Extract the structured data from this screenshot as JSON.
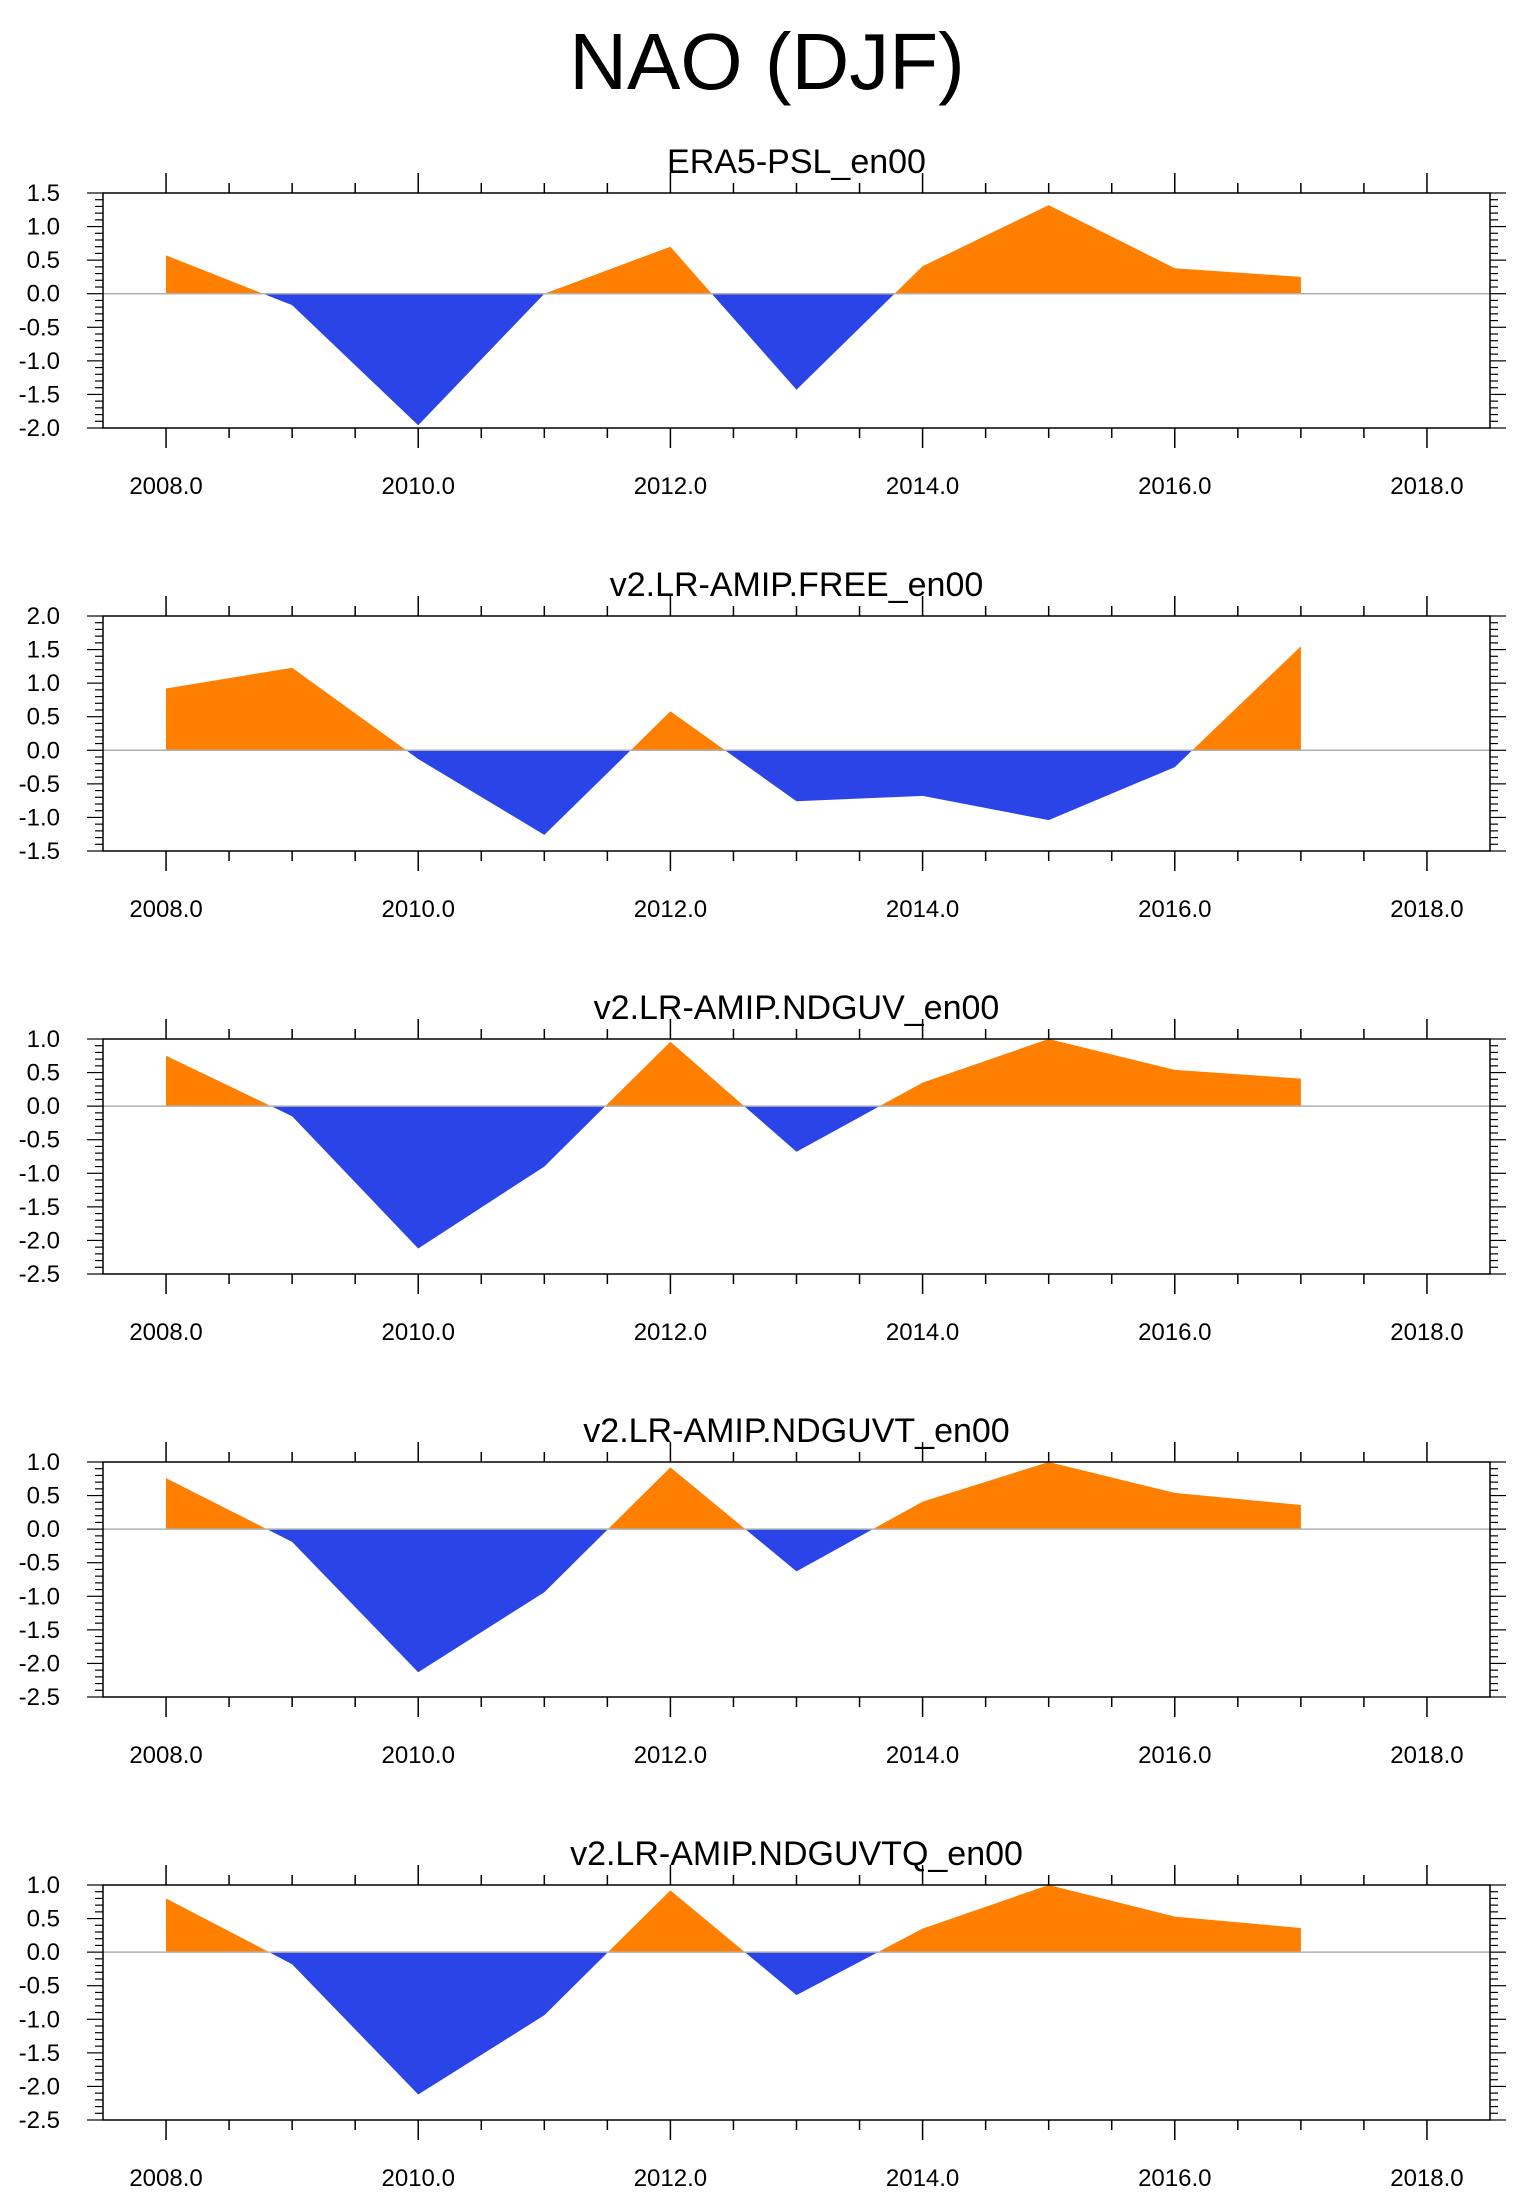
{
  "title": "NAO (DJF)",
  "colors": {
    "positive": "#ff8000",
    "negative": "#2a44e8",
    "axis": "#000000",
    "zero_line": "#b0b0b0"
  },
  "chart_data": [
    {
      "type": "area",
      "title": "ERA5-PSL_en00",
      "x": [
        2008,
        2009,
        2010,
        2011,
        2012,
        2013,
        2014,
        2015,
        2016,
        2017
      ],
      "values": [
        0.57,
        -0.17,
        -1.96,
        0.0,
        0.7,
        -1.43,
        0.41,
        1.32,
        0.38,
        0.25
      ],
      "xlim": [
        2007.5,
        2018.5
      ],
      "xticks": [
        "2008.0",
        "2010.0",
        "2012.0",
        "2014.0",
        "2016.0",
        "2018.0"
      ],
      "ylim": [
        -2.0,
        1.5
      ],
      "yticks": [
        "1.5",
        "1.0",
        "0.5",
        "0.0",
        "-0.5",
        "-1.0",
        "-1.5",
        "-2.0"
      ]
    },
    {
      "type": "area",
      "title": "v2.LR-AMIP.FREE_en00",
      "x": [
        2008,
        2009,
        2010,
        2011,
        2012,
        2013,
        2014,
        2015,
        2016,
        2017
      ],
      "values": [
        0.92,
        1.23,
        -0.13,
        -1.26,
        0.58,
        -0.76,
        -0.68,
        -1.04,
        -0.25,
        1.55
      ],
      "xlim": [
        2007.5,
        2018.5
      ],
      "xticks": [
        "2008.0",
        "2010.0",
        "2012.0",
        "2014.0",
        "2016.0",
        "2018.0"
      ],
      "ylim": [
        -1.5,
        2.0
      ],
      "yticks": [
        "2.0",
        "1.5",
        "1.0",
        "0.5",
        "0.0",
        "-0.5",
        "-1.0",
        "-1.5"
      ]
    },
    {
      "type": "area",
      "title": "v2.LR-AMIP.NDGUV_en00",
      "x": [
        2008,
        2009,
        2010,
        2011,
        2012,
        2013,
        2014,
        2015,
        2016,
        2017
      ],
      "values": [
        0.75,
        -0.15,
        -2.12,
        -0.9,
        0.96,
        -0.68,
        0.35,
        1.0,
        0.54,
        0.41
      ],
      "xlim": [
        2007.5,
        2018.5
      ],
      "xticks": [
        "2008.0",
        "2010.0",
        "2012.0",
        "2014.0",
        "2016.0",
        "2018.0"
      ],
      "ylim": [
        -2.5,
        1.0
      ],
      "yticks": [
        "1.0",
        "0.5",
        "0.0",
        "-0.5",
        "-1.0",
        "-1.5",
        "-2.0",
        "-2.5"
      ]
    },
    {
      "type": "area",
      "title": "v2.LR-AMIP.NDGUVT_en00",
      "x": [
        2008,
        2009,
        2010,
        2011,
        2012,
        2013,
        2014,
        2015,
        2016,
        2017
      ],
      "values": [
        0.76,
        -0.19,
        -2.13,
        -0.94,
        0.92,
        -0.63,
        0.41,
        1.0,
        0.54,
        0.36
      ],
      "xlim": [
        2007.5,
        2018.5
      ],
      "xticks": [
        "2008.0",
        "2010.0",
        "2012.0",
        "2014.0",
        "2016.0",
        "2018.0"
      ],
      "ylim": [
        -2.5,
        1.0
      ],
      "yticks": [
        "1.0",
        "0.5",
        "0.0",
        "-0.5",
        "-1.0",
        "-1.5",
        "-2.0",
        "-2.5"
      ]
    },
    {
      "type": "area",
      "title": "v2.LR-AMIP.NDGUVTQ_en00",
      "x": [
        2008,
        2009,
        2010,
        2011,
        2012,
        2013,
        2014,
        2015,
        2016,
        2017
      ],
      "values": [
        0.8,
        -0.18,
        -2.12,
        -0.94,
        0.92,
        -0.64,
        0.35,
        1.0,
        0.53,
        0.36
      ],
      "xlim": [
        2007.5,
        2018.5
      ],
      "xticks": [
        "2008.0",
        "2010.0",
        "2012.0",
        "2014.0",
        "2016.0",
        "2018.0"
      ],
      "ylim": [
        -2.5,
        1.0
      ],
      "yticks": [
        "1.0",
        "0.5",
        "0.0",
        "-0.5",
        "-1.0",
        "-1.5",
        "-2.0",
        "-2.5"
      ]
    }
  ]
}
